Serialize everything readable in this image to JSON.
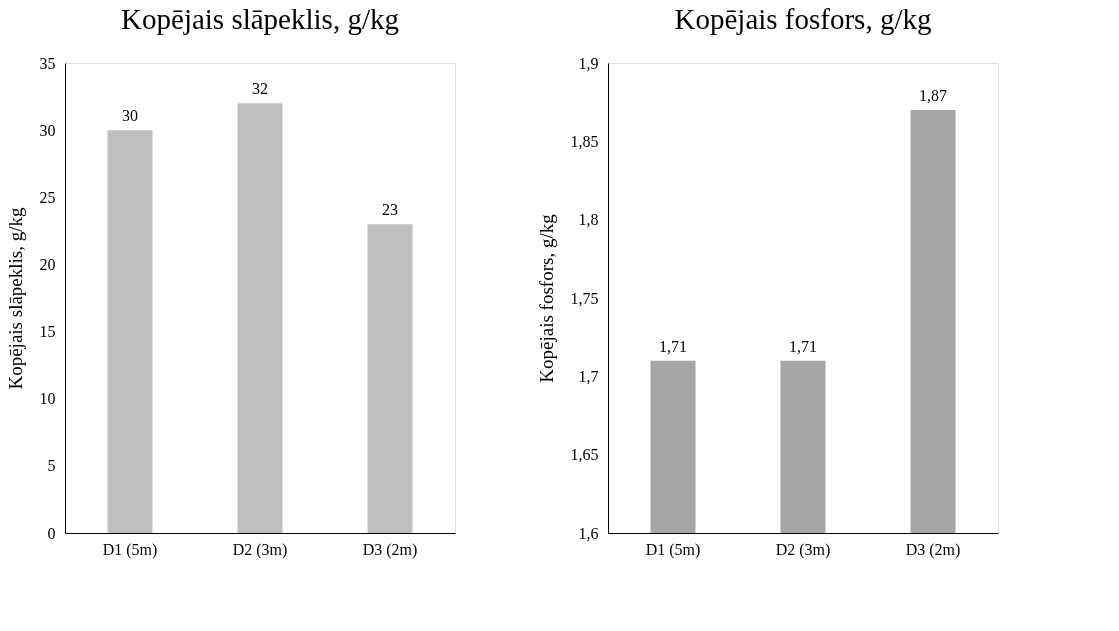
{
  "chart_data": [
    {
      "type": "bar",
      "title": "Kopējais slāpeklis, g/kg",
      "ylabel": "Kopējais slāpeklis, g/kg",
      "categories": [
        "D1 (5m)",
        "D2 (3m)",
        "D3 (2m)"
      ],
      "values": [
        30,
        32,
        23
      ],
      "color": "#bfbfbf",
      "ylim": [
        0,
        35
      ],
      "yticks": [
        0,
        5,
        10,
        15,
        20,
        25,
        30,
        35
      ],
      "data_labels": true,
      "grid": false
    },
    {
      "type": "bar",
      "title": "Kopējais fosfors, g/kg",
      "ylabel": "Kopējais fosfors, g/kg",
      "categories": [
        "D1 (5m)",
        "D2 (3m)",
        "D3 (2m)"
      ],
      "values": [
        1.71,
        1.71,
        1.87
      ],
      "value_labels": [
        "1,71",
        "1,71",
        "1,87"
      ],
      "color": "#a6a6a6",
      "ylim": [
        1.6,
        1.9
      ],
      "yticks": [
        {
          "value": 1.6,
          "label": "1,6"
        },
        {
          "value": 1.65,
          "label": "1,65"
        },
        {
          "value": 1.7,
          "label": "1,7"
        },
        {
          "value": 1.75,
          "label": "1,75"
        },
        {
          "value": 1.8,
          "label": "1,8"
        },
        {
          "value": 1.85,
          "label": "1,85"
        },
        {
          "value": 1.9,
          "label": "1,9"
        }
      ],
      "grid": false
    }
  ]
}
